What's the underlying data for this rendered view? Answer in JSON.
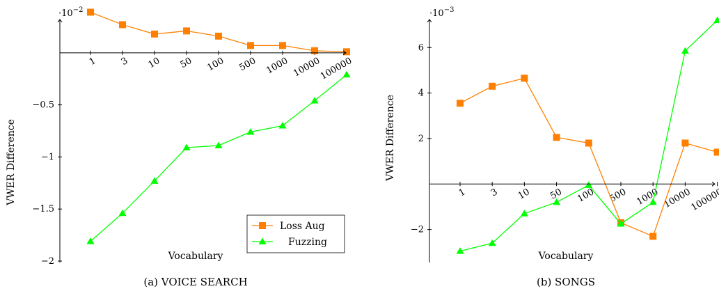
{
  "chart_data": [
    {
      "type": "line",
      "caption": "(a) VOICE SEARCH",
      "xlabel": "Vocabulary",
      "ylabel": "VWER Difference",
      "y_exponent_label": "·10",
      "y_exponent_power": "−2",
      "categories": [
        "1",
        "3",
        "10",
        "50",
        "100",
        "500",
        "1000",
        "10000",
        "100000"
      ],
      "ylim": [
        -2,
        0.4
      ],
      "y_ticks": [
        -2,
        -1.5,
        -1,
        -0.5
      ],
      "y_tick_labels": [
        "−2",
        "−1.5",
        "−1",
        "−0.5"
      ],
      "legend_position": "bottom-right",
      "series": [
        {
          "name": "Loss Aug",
          "color": "#ff8000",
          "marker": "square",
          "values": [
            0.39,
            0.27,
            0.18,
            0.21,
            0.16,
            0.07,
            0.07,
            0.02,
            0.01
          ]
        },
        {
          "name": "Fuzzing",
          "color": "#00ff00",
          "marker": "triangle",
          "values": [
            -1.81,
            -1.54,
            -1.23,
            -0.91,
            -0.89,
            -0.76,
            -0.7,
            -0.46,
            -0.21
          ]
        }
      ]
    },
    {
      "type": "line",
      "caption": "(b) SONGS",
      "xlabel": "Vocabulary",
      "ylabel": "VWER Difference",
      "y_exponent_label": "·10",
      "y_exponent_power": "−3",
      "categories": [
        "1",
        "3",
        "10",
        "50",
        "100",
        "500",
        "1000",
        "10000",
        "100000"
      ],
      "ylim": [
        -3.45,
        7.6
      ],
      "y_ticks": [
        -2,
        2,
        4,
        6
      ],
      "y_tick_labels": [
        "−2",
        "2",
        "4",
        "6"
      ],
      "series": [
        {
          "name": "Loss Aug",
          "color": "#ff8000",
          "marker": "square",
          "values": [
            3.55,
            4.3,
            4.65,
            2.05,
            1.8,
            -1.7,
            -2.3,
            1.8,
            1.4
          ]
        },
        {
          "name": "Fuzzing",
          "color": "#00ff00",
          "marker": "triangle",
          "values": [
            -2.95,
            -2.6,
            -1.3,
            -0.8,
            -0.05,
            -1.75,
            -0.8,
            5.85,
            7.2
          ]
        }
      ]
    }
  ]
}
